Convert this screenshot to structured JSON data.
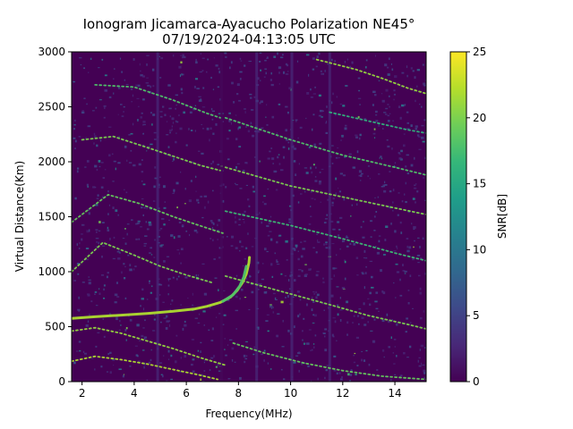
{
  "chart_data": {
    "type": "heatmap",
    "title": "Ionogram Jicamarca-Ayacucho Polarization NE45°",
    "subtitle": "07/19/2024-04:13:05 UTC",
    "xlabel": "Frequency(MHz)",
    "ylabel": "Virtual Distance(Km)",
    "colorbar_label": "SNR[dB]",
    "colormap": "viridis",
    "colormap_stops": [
      "#440154",
      "#482878",
      "#3e4989",
      "#31688e",
      "#26828e",
      "#1f9e89",
      "#35b779",
      "#6ece58",
      "#b5de2b",
      "#fde725"
    ],
    "xlim": [
      1.6,
      15.2
    ],
    "ylim": [
      0,
      3000
    ],
    "clim": [
      0,
      25
    ],
    "x_ticks": [
      "2",
      "4",
      "6",
      "8",
      "10",
      "12",
      "14"
    ],
    "y_ticks": [
      "0",
      "500",
      "1000",
      "1500",
      "2000",
      "2500",
      "3000"
    ],
    "colorbar_ticks": [
      "0",
      "5",
      "10",
      "15",
      "20",
      "25"
    ],
    "traces": [
      {
        "name": "o-trace",
        "snr": 22,
        "points": [
          [
            1.6,
            575
          ],
          [
            2.5,
            590
          ],
          [
            3.5,
            605
          ],
          [
            4.5,
            620
          ],
          [
            5.5,
            640
          ],
          [
            6.3,
            660
          ],
          [
            6.8,
            685
          ],
          [
            7.3,
            720
          ],
          [
            7.7,
            770
          ],
          [
            7.95,
            830
          ],
          [
            8.15,
            900
          ],
          [
            8.3,
            980
          ],
          [
            8.4,
            1080
          ],
          [
            8.42,
            1130
          ]
        ]
      },
      {
        "name": "o-trace-inner",
        "snr": 18,
        "points": [
          [
            7.4,
            730
          ],
          [
            7.8,
            790
          ],
          [
            8.05,
            870
          ],
          [
            8.2,
            950
          ],
          [
            8.3,
            1050
          ]
        ]
      },
      {
        "name": "ground-1",
        "snr": 22,
        "points": [
          [
            1.6,
            185
          ],
          [
            2.5,
            230
          ],
          [
            3.5,
            200
          ],
          [
            4.5,
            160
          ],
          [
            5.5,
            110
          ],
          [
            6.5,
            60
          ],
          [
            7.2,
            20
          ]
        ]
      },
      {
        "name": "ground-2",
        "snr": 21,
        "points": [
          [
            1.6,
            460
          ],
          [
            2.5,
            490
          ],
          [
            3.5,
            440
          ],
          [
            4.5,
            370
          ],
          [
            5.5,
            300
          ],
          [
            6.5,
            220
          ],
          [
            7.5,
            150
          ]
        ]
      },
      {
        "name": "ground-3",
        "snr": 20,
        "points": [
          [
            1.6,
            1000
          ],
          [
            2.8,
            1265
          ],
          [
            4.0,
            1150
          ],
          [
            5.0,
            1050
          ],
          [
            6.0,
            970
          ],
          [
            7.0,
            900
          ]
        ]
      },
      {
        "name": "ground-4",
        "snr": 19,
        "points": [
          [
            1.6,
            1450
          ],
          [
            3.0,
            1700
          ],
          [
            4.2,
            1620
          ],
          [
            5.5,
            1500
          ],
          [
            6.5,
            1420
          ],
          [
            7.4,
            1350
          ]
        ]
      },
      {
        "name": "ground-5",
        "snr": 20,
        "points": [
          [
            2.0,
            2200
          ],
          [
            3.2,
            2230
          ],
          [
            4.5,
            2130
          ],
          [
            5.5,
            2050
          ],
          [
            6.5,
            1970
          ],
          [
            7.3,
            1920
          ]
        ]
      },
      {
        "name": "ground-6",
        "snr": 18,
        "points": [
          [
            2.5,
            2700
          ],
          [
            4.0,
            2680
          ],
          [
            5.5,
            2560
          ],
          [
            6.8,
            2440
          ],
          [
            7.3,
            2400
          ]
        ]
      },
      {
        "name": "far-1",
        "snr": 19,
        "points": [
          [
            7.8,
            350
          ],
          [
            9.0,
            260
          ],
          [
            10.5,
            170
          ],
          [
            12.0,
            100
          ],
          [
            13.5,
            50
          ],
          [
            15.2,
            20
          ]
        ]
      },
      {
        "name": "far-2",
        "snr": 20,
        "points": [
          [
            7.5,
            960
          ],
          [
            9.5,
            830
          ],
          [
            11.5,
            700
          ],
          [
            13.0,
            600
          ],
          [
            14.5,
            520
          ],
          [
            15.2,
            480
          ]
        ]
      },
      {
        "name": "far-3",
        "snr": 17,
        "points": [
          [
            7.5,
            1550
          ],
          [
            10.0,
            1420
          ],
          [
            12.0,
            1300
          ],
          [
            14.0,
            1170
          ],
          [
            15.2,
            1100
          ]
        ]
      },
      {
        "name": "far-4",
        "snr": 20,
        "points": [
          [
            7.5,
            1950
          ],
          [
            10.0,
            1780
          ],
          [
            12.0,
            1680
          ],
          [
            14.0,
            1580
          ],
          [
            15.2,
            1520
          ]
        ]
      },
      {
        "name": "far-5",
        "snr": 18,
        "points": [
          [
            7.5,
            2400
          ],
          [
            10.0,
            2200
          ],
          [
            12.0,
            2060
          ],
          [
            14.0,
            1950
          ],
          [
            15.2,
            1880
          ]
        ]
      },
      {
        "name": "far-6",
        "snr": 21,
        "points": [
          [
            11.0,
            2930
          ],
          [
            12.5,
            2840
          ],
          [
            13.5,
            2760
          ],
          [
            14.5,
            2670
          ],
          [
            15.2,
            2620
          ]
        ]
      },
      {
        "name": "far-7",
        "snr": 16,
        "points": [
          [
            11.5,
            2450
          ],
          [
            13.0,
            2370
          ],
          [
            14.5,
            2290
          ],
          [
            15.2,
            2260
          ]
        ]
      }
    ]
  }
}
